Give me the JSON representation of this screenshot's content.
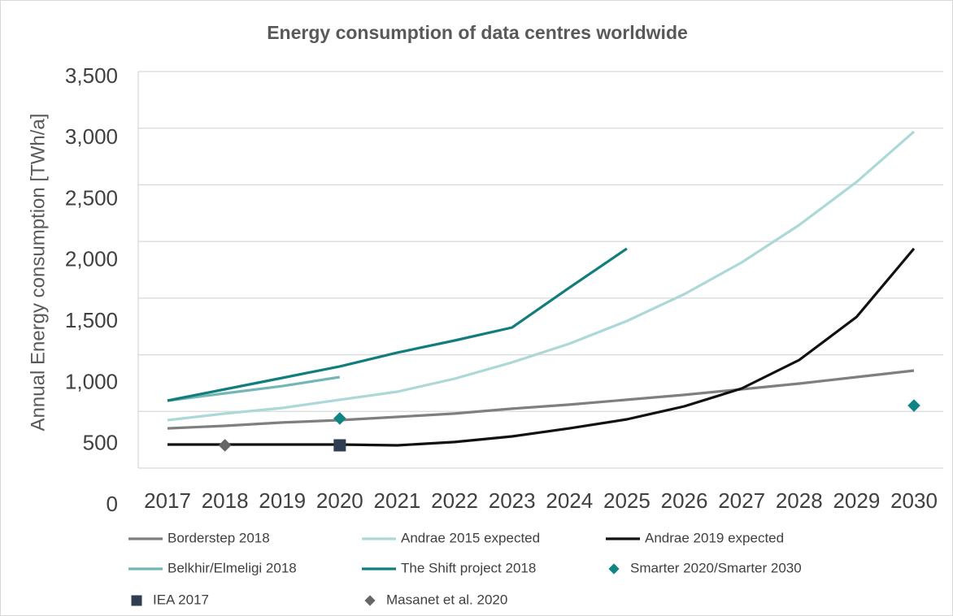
{
  "chart_data": {
    "type": "line",
    "title": "Energy consumption of data centres worldwide",
    "y_label": "Annual Energy consumption [TWh/a]",
    "categories": [
      "2017",
      "2018",
      "2019",
      "2020",
      "2021",
      "2022",
      "2023",
      "2024",
      "2025",
      "2026",
      "2027",
      "2028",
      "2029",
      "2030"
    ],
    "ylim": [
      0,
      3500
    ],
    "yticks": [
      0,
      {
        "value": 500,
        "label": "500"
      },
      {
        "value": 1000,
        "label": "1,000"
      },
      {
        "value": 1500,
        "label": "1,500"
      },
      {
        "value": 2000,
        "label": "2,000"
      },
      {
        "value": 2500,
        "label": "2,500"
      },
      {
        "value": 3000,
        "label": "3,000"
      },
      {
        "value": 3500,
        "label": "3,500"
      }
    ],
    "grid": true,
    "legend": "bottom",
    "series": [
      {
        "name": "Borderstep 2018",
        "color": "#7f7f7f",
        "style": "line",
        "values": [
          351,
          373,
          402,
          423,
          452,
          481,
          524,
          560,
          603,
          646,
          696,
          746,
          803,
          861
        ]
      },
      {
        "name": "Andrae 2015 expected",
        "color": "#acd8d8",
        "style": "line",
        "values": [
          423,
          481,
          531,
          603,
          674,
          789,
          933,
          1098,
          1298,
          1535,
          1815,
          2145,
          2525,
          2970
        ]
      },
      {
        "name": "Andrae 2019 expected",
        "color": "#111111",
        "style": "line",
        "values": [
          208,
          208,
          208,
          208,
          201,
          230,
          280,
          351,
          430,
          545,
          703,
          954,
          1334,
          1937
        ]
      },
      {
        "name": "Belkhir/Elmeligi 2018",
        "color": "#74b6b6",
        "style": "line",
        "values": [
          595,
          660,
          724,
          803,
          null,
          null,
          null,
          null,
          null,
          null,
          null,
          null,
          null,
          null
        ]
      },
      {
        "name": "The Shift project 2018",
        "color": "#127d7d",
        "style": "line",
        "values": [
          595,
          696,
          796,
          897,
          1019,
          1126,
          1241,
          1593,
          1937,
          null,
          null,
          null,
          null,
          null
        ]
      },
      {
        "name": "Smarter 2020/Smarter 2030",
        "color": "#118585",
        "style": "marker",
        "marker": "diamond",
        "values": [
          null,
          null,
          null,
          438,
          null,
          null,
          null,
          null,
          null,
          null,
          null,
          null,
          null,
          552
        ]
      },
      {
        "name": "IEA 2017",
        "color": "#2f3e52",
        "style": "marker",
        "marker": "square",
        "values": [
          null,
          null,
          null,
          201,
          null,
          null,
          null,
          null,
          null,
          null,
          null,
          null,
          null,
          null
        ]
      },
      {
        "name": "Masanet et al. 2020",
        "color": "#666666",
        "style": "marker",
        "marker": "diamond",
        "values": [
          null,
          201,
          null,
          null,
          null,
          null,
          null,
          null,
          null,
          null,
          null,
          null,
          null,
          null
        ]
      }
    ]
  }
}
